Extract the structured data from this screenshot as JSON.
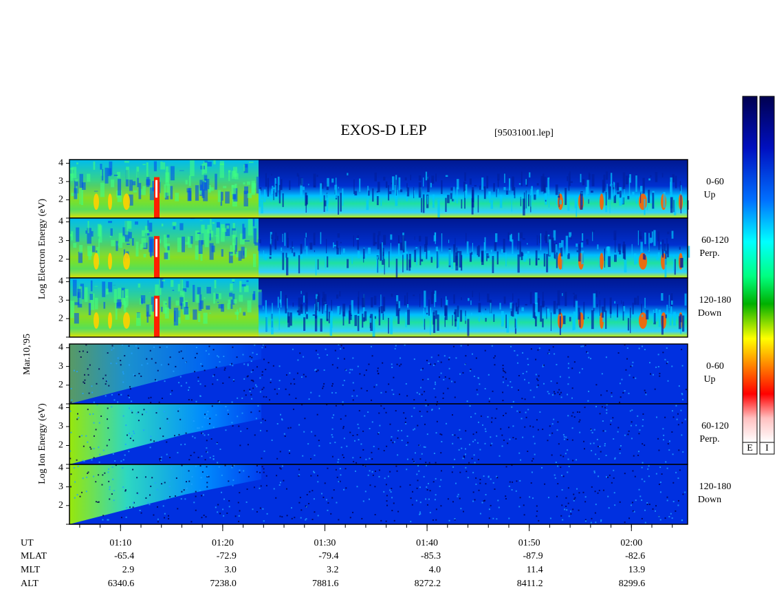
{
  "title": "EXOS-D LEP",
  "file": "[95031001.lep]",
  "date": "Mar.10,'95",
  "groups": [
    {
      "label": "Log Electron Energy (eV)"
    },
    {
      "label": "Log Ion Energy (eV)"
    }
  ],
  "angles": [
    {
      "range": "0-60",
      "direction": "Up"
    },
    {
      "range": "60-120",
      "direction": "Perp."
    },
    {
      "range": "120-180",
      "direction": "Down"
    }
  ],
  "colorbars": [
    "E",
    "I"
  ],
  "yaxis": {
    "ylim": [
      1,
      4.2
    ],
    "yticks": [
      2,
      3,
      4
    ]
  },
  "xaxis": {
    "xlim": [
      65,
      125.5
    ],
    "minor_step": 2,
    "xticks": [
      {
        "value": 70,
        "label": "01:10"
      },
      {
        "value": 80,
        "label": "01:20"
      },
      {
        "value": 90,
        "label": "01:30"
      },
      {
        "value": 100,
        "label": "01:40"
      },
      {
        "value": 110,
        "label": "01:50"
      },
      {
        "value": 120,
        "label": "02:00"
      }
    ]
  },
  "ephemeris": {
    "ut_name": "UT",
    "rows": [
      {
        "name": "MLAT",
        "values": [
          "-65.4",
          "-72.9",
          "-79.4",
          "-85.3",
          "-87.9",
          "-82.6"
        ]
      },
      {
        "name": "MLT",
        "values": [
          "2.9",
          "3.0",
          "3.2",
          "4.0",
          "11.4",
          "13.9"
        ]
      },
      {
        "name": "ALT",
        "values": [
          "6340.6",
          "7238.0",
          "7881.6",
          "8272.2",
          "8411.2",
          "8299.6"
        ]
      }
    ]
  }
}
